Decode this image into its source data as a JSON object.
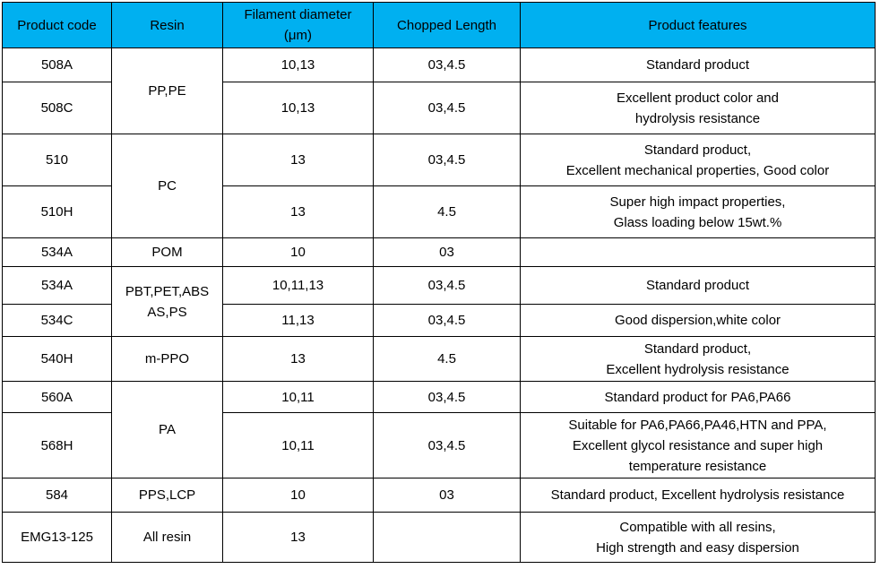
{
  "table": {
    "header_color": "#00b0f0",
    "headers": [
      "Product code",
      "Resin",
      "Filament diameter\n(μm)",
      "Chopped Length",
      "Product features"
    ],
    "rows": [
      {
        "code": "508A",
        "resin": "PP,PE",
        "diameter": "10,13",
        "length": "03,4.5",
        "features": "Standard product"
      },
      {
        "code": "508C",
        "resin": "",
        "diameter": "10,13",
        "length": "03,4.5",
        "features": "Excellent product color and\nhydrolysis resistance"
      },
      {
        "code": "510",
        "resin": "PC",
        "diameter": "13",
        "length": "03,4.5",
        "features": "Standard product,\nExcellent mechanical properties, Good color"
      },
      {
        "code": "510H",
        "resin": "",
        "diameter": "13",
        "length": "4.5",
        "features": "Super high impact properties,\nGlass loading below 15wt.%"
      },
      {
        "code": "534A",
        "resin": "POM",
        "diameter": "10",
        "length": "03",
        "features": ""
      },
      {
        "code": "534A",
        "resin": "PBT,PET,ABS\nAS,PS",
        "diameter": "10,11,13",
        "length": "03,4.5",
        "features": "Standard product"
      },
      {
        "code": "534C",
        "resin": "",
        "diameter": "11,13",
        "length": "03,4.5",
        "features": "Good dispersion,white color"
      },
      {
        "code": "540H",
        "resin": "m-PPO",
        "diameter": "13",
        "length": "4.5",
        "features": "Standard product,\nExcellent hydrolysis resistance"
      },
      {
        "code": "560A",
        "resin": "PA",
        "diameter": "10,11",
        "length": "03,4.5",
        "features": "Standard product for PA6,PA66"
      },
      {
        "code": "568H",
        "resin": "",
        "diameter": "10,11",
        "length": "03,4.5",
        "features": "Suitable for PA6,PA66,PA46,HTN and PPA,\nExcellent glycol resistance and super high\ntemperature resistance"
      },
      {
        "code": "584",
        "resin": "PPS,LCP",
        "diameter": "10",
        "length": "03",
        "features": "Standard product, Excellent hydrolysis resistance"
      },
      {
        "code": "EMG13-125",
        "resin": "All resin",
        "diameter": "13",
        "length": "",
        "features": "Compatible with all resins,\nHigh strength and easy dispersion"
      }
    ]
  }
}
